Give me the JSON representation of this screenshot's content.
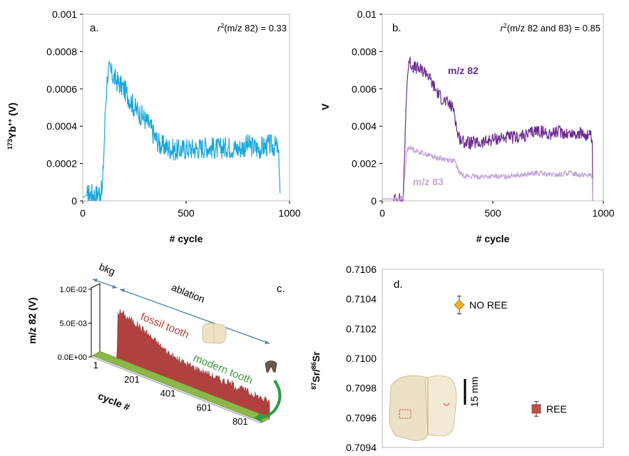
{
  "chart_data": [
    {
      "panel": "a.",
      "type": "line",
      "annotation": "(m/z 82) = 0.33",
      "annotation_r": "r",
      "annotation_sup": "2",
      "ylabel_sup": "173",
      "ylabel_main": "Yb",
      "ylabel_sup2": "++",
      "ylabel_tail": " (V)",
      "xlabel": "# cycle",
      "xlim": [
        0,
        1000
      ],
      "ylim": [
        0,
        0.001
      ],
      "xticks": [
        "0",
        "500",
        "1000"
      ],
      "yticks": [
        "0",
        "0.0002",
        "0.0004",
        "0.0006",
        "0.0008",
        "0.001"
      ],
      "color": "#1aa7dc",
      "series": [
        {
          "x": [
            0,
            20,
            40,
            60,
            80,
            95,
            100,
            110,
            120,
            130,
            150,
            175,
            200,
            225,
            250,
            275,
            300,
            325,
            350,
            375,
            400,
            425,
            450,
            500,
            550,
            600,
            650,
            700,
            750,
            800,
            850,
            900,
            940,
            950,
            955
          ],
          "values": [
            2e-05,
            3e-05,
            4e-05,
            3e-05,
            5e-05,
            5e-05,
            0.0002,
            0.0005,
            0.00068,
            0.0007,
            0.00066,
            0.00063,
            0.0006,
            0.00055,
            0.0005,
            0.00047,
            0.00044,
            0.0004,
            0.00034,
            0.0003,
            0.00029,
            0.00028,
            0.00027,
            0.00028,
            0.00028,
            0.00029,
            0.00028,
            0.00029,
            0.00028,
            0.0003,
            0.00028,
            0.0003,
            0.00029,
            0.0002,
            0.0
          ]
        }
      ]
    },
    {
      "panel": "b.",
      "type": "line",
      "annotation": "(m/z 82 and 83) = 0.85",
      "annotation_r": "r",
      "annotation_sup": "2",
      "ylabel": "V",
      "xlabel": "# cycle",
      "xlim": [
        0,
        1000
      ],
      "ylim": [
        0,
        0.01
      ],
      "xticks": [
        "0",
        "500",
        "1000"
      ],
      "yticks": [
        "0",
        "0.002",
        "0.004",
        "0.006",
        "0.008",
        "0.01"
      ],
      "series": [
        {
          "name": "m/z 82",
          "color": "#6b2d8f",
          "x": [
            0,
            50,
            95,
            100,
            110,
            120,
            140,
            175,
            200,
            225,
            250,
            275,
            300,
            325,
            340,
            360,
            400,
            450,
            500,
            550,
            600,
            650,
            700,
            750,
            800,
            850,
            900,
            940,
            950,
            952
          ],
          "values": [
            0.0001,
            0.0001,
            0.0001,
            0.002,
            0.006,
            0.0075,
            0.0072,
            0.007,
            0.0069,
            0.0063,
            0.0058,
            0.0054,
            0.0052,
            0.0049,
            0.0036,
            0.0032,
            0.0031,
            0.0031,
            0.0033,
            0.0034,
            0.0034,
            0.0035,
            0.0038,
            0.0036,
            0.0037,
            0.0036,
            0.0036,
            0.0035,
            0.0032,
            0.0
          ]
        },
        {
          "name": "m/z 83",
          "color": "#c3a8d6",
          "x": [
            0,
            50,
            95,
            100,
            110,
            120,
            150,
            200,
            250,
            300,
            330,
            345,
            360,
            400,
            450,
            500,
            550,
            600,
            650,
            700,
            750,
            800,
            850,
            900,
            940,
            950,
            952
          ],
          "values": [
            0.0001,
            0.0001,
            0.0001,
            0.001,
            0.0026,
            0.0029,
            0.0027,
            0.0025,
            0.0023,
            0.0022,
            0.0021,
            0.0016,
            0.0014,
            0.0013,
            0.0013,
            0.0013,
            0.0013,
            0.0014,
            0.0014,
            0.0015,
            0.0014,
            0.0014,
            0.0015,
            0.0014,
            0.0014,
            0.0012,
            0.0
          ]
        }
      ]
    },
    {
      "panel": "c.",
      "type": "area",
      "ylabel": "m/z 82 (V)",
      "xlabel": "cycle #",
      "yticks": [
        "0.0E+00",
        "5.0E-03",
        "1.0E-02"
      ],
      "xticks": [
        "1",
        "201",
        "401",
        "601",
        "801"
      ],
      "ylim": [
        0,
        0.01
      ],
      "bkg_label": "bkg",
      "ablation_label": "ablation",
      "series": [
        {
          "name": "fossil tooth",
          "color": "#b0413e",
          "x": [
            1,
            50,
            95,
            100,
            120,
            150,
            200,
            250,
            300,
            350,
            400,
            450,
            500,
            550,
            600,
            650,
            700,
            750,
            800,
            850,
            900,
            940
          ],
          "values": [
            0.0001,
            0.0001,
            0.0001,
            0.007,
            0.0072,
            0.0068,
            0.0064,
            0.0058,
            0.005,
            0.0043,
            0.0037,
            0.0034,
            0.0033,
            0.0032,
            0.0031,
            0.003,
            0.003,
            0.0029,
            0.0028,
            0.0027,
            0.0026,
            0.0025
          ]
        },
        {
          "name": "modern tooth",
          "color": "#8cb84a",
          "x": [
            1,
            940
          ],
          "values": [
            0.0002,
            0.0002
          ]
        }
      ]
    },
    {
      "panel": "d.",
      "type": "scatter",
      "ylabel_sup1": "87",
      "ylabel_mid": "Sr/",
      "ylabel_sup2": "86",
      "ylabel_tail": "Sr",
      "ylim": [
        0.7094,
        0.7106
      ],
      "yticks": [
        "0.7094",
        "0.7096",
        "0.7098",
        "0.7100",
        "0.7102",
        "0.7104",
        "0.7106"
      ],
      "scale_label": "15 mm",
      "points": [
        {
          "label": "NO REE",
          "y": 0.71036,
          "err": 6e-05,
          "marker": "diamond",
          "color": "#f0b42a"
        },
        {
          "label": "REE",
          "y": 0.70966,
          "err": 5e-05,
          "marker": "square",
          "color": "#c0504d"
        }
      ]
    }
  ]
}
